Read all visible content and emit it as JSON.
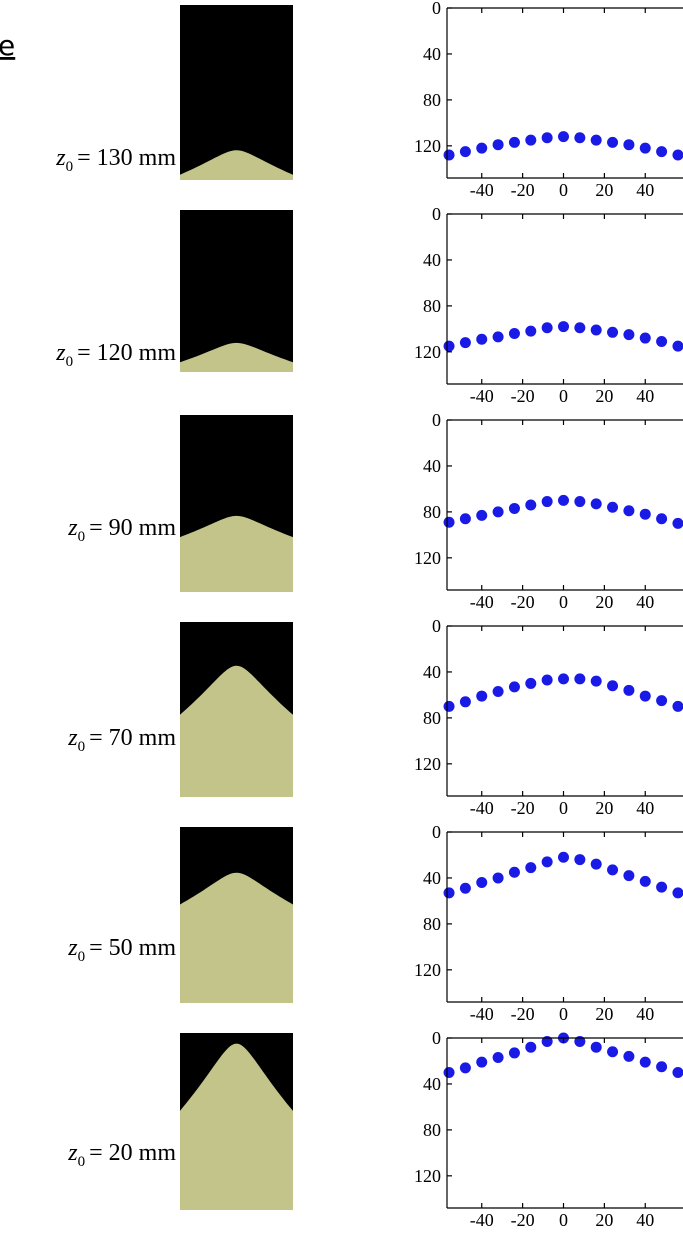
{
  "panel_label": "e",
  "chart_data": [
    {
      "type": "scatter",
      "label": {
        "var": "z",
        "sub": "0",
        "text": "= 130 mm"
      },
      "color": "#1a1ae6",
      "x": [
        -56,
        -48,
        -40,
        -32,
        -24,
        -16,
        -8,
        0,
        8,
        16,
        24,
        32,
        40,
        48,
        56
      ],
      "values": [
        128,
        125,
        122,
        119,
        117,
        115,
        113,
        112,
        113,
        115,
        117,
        119,
        122,
        125,
        128
      ],
      "xlim": [
        -57,
        57
      ],
      "ylim": [
        0,
        148
      ],
      "y_inverted": true,
      "xticks": [
        -40,
        -20,
        0,
        20,
        40
      ],
      "yticks": [
        0,
        40,
        80,
        120
      ]
    },
    {
      "type": "scatter",
      "label": {
        "var": "z",
        "sub": "0",
        "text": "= 120 mm"
      },
      "color": "#1a1ae6",
      "x": [
        -56,
        -48,
        -40,
        -32,
        -24,
        -16,
        -8,
        0,
        8,
        16,
        24,
        32,
        40,
        48,
        56
      ],
      "values": [
        115,
        112,
        109,
        107,
        104,
        102,
        99,
        98,
        99,
        101,
        103,
        105,
        108,
        111,
        115
      ],
      "xlim": [
        -57,
        57
      ],
      "ylim": [
        0,
        148
      ],
      "y_inverted": true,
      "xticks": [
        -40,
        -20,
        0,
        20,
        40
      ],
      "yticks": [
        0,
        40,
        80,
        120
      ]
    },
    {
      "type": "scatter",
      "label": {
        "var": "z",
        "sub": "0",
        "text": "= 90 mm"
      },
      "color": "#1a1ae6",
      "x": [
        -56,
        -48,
        -40,
        -32,
        -24,
        -16,
        -8,
        0,
        8,
        16,
        24,
        32,
        40,
        48,
        56
      ],
      "values": [
        89,
        86,
        83,
        80,
        77,
        74,
        71,
        70,
        71,
        73,
        76,
        79,
        82,
        86,
        90
      ],
      "xlim": [
        -57,
        57
      ],
      "ylim": [
        0,
        148
      ],
      "y_inverted": true,
      "xticks": [
        -40,
        -20,
        0,
        20,
        40
      ],
      "yticks": [
        0,
        40,
        80,
        120
      ]
    },
    {
      "type": "scatter",
      "label": {
        "var": "z",
        "sub": "0",
        "text": "= 70 mm"
      },
      "color": "#1a1ae6",
      "x": [
        -56,
        -48,
        -40,
        -32,
        -24,
        -16,
        -8,
        0,
        8,
        16,
        24,
        32,
        40,
        48,
        56
      ],
      "values": [
        70,
        66,
        61,
        57,
        53,
        50,
        47,
        46,
        46,
        48,
        52,
        56,
        61,
        65,
        70
      ],
      "xlim": [
        -57,
        57
      ],
      "ylim": [
        0,
        148
      ],
      "y_inverted": true,
      "xticks": [
        -40,
        -20,
        0,
        20,
        40
      ],
      "yticks": [
        0,
        40,
        80,
        120
      ]
    },
    {
      "type": "scatter",
      "label": {
        "var": "z",
        "sub": "0",
        "text": "= 50 mm"
      },
      "color": "#1a1ae6",
      "x": [
        -56,
        -48,
        -40,
        -32,
        -24,
        -16,
        -8,
        0,
        8,
        16,
        24,
        32,
        40,
        48,
        56
      ],
      "values": [
        53,
        49,
        44,
        40,
        35,
        31,
        26,
        22,
        24,
        28,
        33,
        38,
        43,
        48,
        53
      ],
      "xlim": [
        -57,
        57
      ],
      "ylim": [
        0,
        148
      ],
      "y_inverted": true,
      "xticks": [
        -40,
        -20,
        0,
        20,
        40
      ],
      "yticks": [
        0,
        40,
        80,
        120
      ]
    },
    {
      "type": "scatter",
      "label": {
        "var": "z",
        "sub": "0",
        "text": "= 20 mm"
      },
      "color": "#1a1ae6",
      "x": [
        -56,
        -48,
        -40,
        -32,
        -24,
        -16,
        -8,
        0,
        8,
        16,
        24,
        32,
        40,
        48,
        56
      ],
      "values": [
        30,
        26,
        21,
        17,
        13,
        8,
        3,
        0,
        3,
        8,
        12,
        16,
        21,
        25,
        30
      ],
      "xlim": [
        -57,
        57
      ],
      "ylim": [
        0,
        148
      ],
      "y_inverted": true,
      "xticks": [
        -40,
        -20,
        0,
        20,
        40
      ],
      "yticks": [
        0,
        40,
        80,
        120
      ]
    }
  ]
}
